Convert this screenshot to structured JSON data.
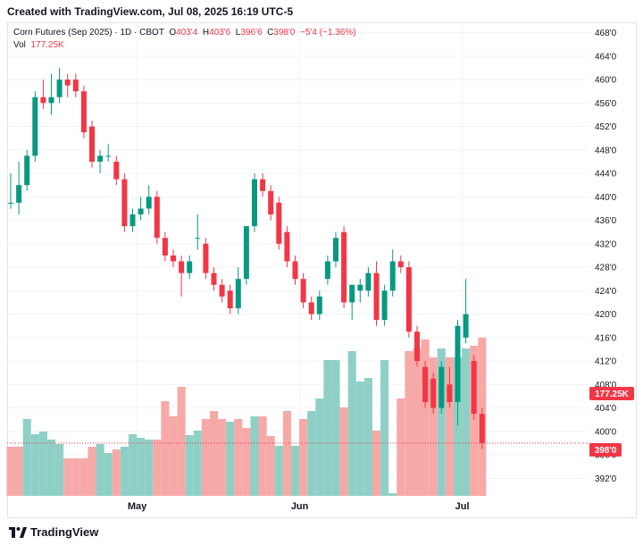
{
  "header": {
    "created": "Created with TradingView.com, Jul 08, 2025 16:19 UTC-5"
  },
  "legend": {
    "symbol": "Corn Futures (Sep 2025) · 1D · CBOT",
    "o_label": "O",
    "o_value": "403'4",
    "h_label": "H",
    "h_value": "403'6",
    "l_label": "L",
    "l_value": "396'6",
    "c_label": "C",
    "c_value": "398'0",
    "change": "−5'4 (−1.36%)",
    "vol_label": "Vol",
    "vol_value": "177.25K"
  },
  "badges": {
    "volume": "177.25K",
    "price": "398'0"
  },
  "footer": {
    "brand": "TradingView"
  },
  "colors": {
    "up": "#089981",
    "down": "#f23645",
    "vol_up": "#8fd0c6",
    "vol_down": "#f7a9a7"
  },
  "chart_data": {
    "type": "candlestick",
    "y_axis": {
      "ylim": [
        389,
        469
      ],
      "ticks": [
        392,
        396,
        400,
        404,
        408,
        412,
        416,
        420,
        424,
        428,
        432,
        436,
        440,
        444,
        448,
        452,
        456,
        460,
        464,
        468
      ],
      "tick_labels": [
        "392'0",
        "396'0",
        "400'0",
        "404'0",
        "408'0",
        "412'0",
        "416'0",
        "420'0",
        "424'0",
        "428'0",
        "432'0",
        "436'0",
        "440'0",
        "444'0",
        "448'0",
        "452'0",
        "456'0",
        "460'0",
        "464'0",
        "468'0"
      ]
    },
    "x_labels": [
      {
        "label": "May",
        "index": 16
      },
      {
        "label": "Jun",
        "index": 36
      },
      {
        "label": "Jul",
        "index": 56
      }
    ],
    "last_price": 398,
    "candles": [
      {
        "o": 439,
        "h": 444,
        "l": 438,
        "c": 439
      },
      {
        "o": 439,
        "h": 446,
        "l": 437,
        "c": 442
      },
      {
        "o": 442,
        "h": 448,
        "l": 441,
        "c": 447
      },
      {
        "o": 447,
        "h": 458,
        "l": 446,
        "c": 457
      },
      {
        "o": 457,
        "h": 460,
        "l": 455,
        "c": 456
      },
      {
        "o": 456,
        "h": 461,
        "l": 454,
        "c": 457
      },
      {
        "o": 457,
        "h": 462,
        "l": 456,
        "c": 460
      },
      {
        "o": 460,
        "h": 461,
        "l": 457,
        "c": 459
      },
      {
        "o": 460,
        "h": 461,
        "l": 457,
        "c": 458
      },
      {
        "o": 458,
        "h": 459,
        "l": 450,
        "c": 451
      },
      {
        "o": 452,
        "h": 453,
        "l": 445,
        "c": 446
      },
      {
        "o": 446,
        "h": 448,
        "l": 444,
        "c": 447
      },
      {
        "o": 447,
        "h": 449,
        "l": 446,
        "c": 447
      },
      {
        "o": 446,
        "h": 447,
        "l": 442,
        "c": 443
      },
      {
        "o": 443,
        "h": 444,
        "l": 434,
        "c": 435
      },
      {
        "o": 435,
        "h": 438,
        "l": 434,
        "c": 437
      },
      {
        "o": 437,
        "h": 440,
        "l": 436,
        "c": 438
      },
      {
        "o": 438,
        "h": 442,
        "l": 437,
        "c": 440
      },
      {
        "o": 440,
        "h": 441,
        "l": 432,
        "c": 433
      },
      {
        "o": 433,
        "h": 434,
        "l": 429,
        "c": 430
      },
      {
        "o": 430,
        "h": 431,
        "l": 428,
        "c": 429
      },
      {
        "o": 429,
        "h": 430,
        "l": 423,
        "c": 427
      },
      {
        "o": 427,
        "h": 430,
        "l": 426,
        "c": 429
      },
      {
        "o": 433,
        "h": 437,
        "l": 431,
        "c": 433
      },
      {
        "o": 432,
        "h": 433,
        "l": 426,
        "c": 427
      },
      {
        "o": 427,
        "h": 428,
        "l": 424,
        "c": 425
      },
      {
        "o": 425,
        "h": 426,
        "l": 422,
        "c": 423
      },
      {
        "o": 424,
        "h": 425,
        "l": 420,
        "c": 421
      },
      {
        "o": 421,
        "h": 428,
        "l": 420,
        "c": 426
      },
      {
        "o": 426,
        "h": 435,
        "l": 425,
        "c": 435
      },
      {
        "o": 435,
        "h": 444,
        "l": 434,
        "c": 443
      },
      {
        "o": 443,
        "h": 444,
        "l": 440,
        "c": 441
      },
      {
        "o": 441,
        "h": 442,
        "l": 436,
        "c": 437
      },
      {
        "o": 439,
        "h": 440,
        "l": 431,
        "c": 432
      },
      {
        "o": 434,
        "h": 435,
        "l": 428,
        "c": 429
      },
      {
        "o": 429,
        "h": 430,
        "l": 425,
        "c": 426
      },
      {
        "o": 426,
        "h": 427,
        "l": 421,
        "c": 422
      },
      {
        "o": 422,
        "h": 423,
        "l": 419,
        "c": 420
      },
      {
        "o": 420,
        "h": 424,
        "l": 419,
        "c": 423
      },
      {
        "o": 426,
        "h": 430,
        "l": 425,
        "c": 429
      },
      {
        "o": 429,
        "h": 434,
        "l": 428,
        "c": 433
      },
      {
        "o": 434,
        "h": 435,
        "l": 421,
        "c": 422
      },
      {
        "o": 422,
        "h": 425,
        "l": 419,
        "c": 425
      },
      {
        "o": 424,
        "h": 426,
        "l": 422,
        "c": 425
      },
      {
        "o": 424,
        "h": 428,
        "l": 423,
        "c": 427
      },
      {
        "o": 427,
        "h": 429,
        "l": 418,
        "c": 419
      },
      {
        "o": 419,
        "h": 425,
        "l": 418,
        "c": 424
      },
      {
        "o": 424,
        "h": 431,
        "l": 423,
        "c": 429
      },
      {
        "o": 429,
        "h": 430,
        "l": 427,
        "c": 428
      },
      {
        "o": 428,
        "h": 429,
        "l": 416,
        "c": 417
      },
      {
        "o": 417,
        "h": 418,
        "l": 411,
        "c": 412
      },
      {
        "o": 411,
        "h": 412,
        "l": 404,
        "c": 405
      },
      {
        "o": 409,
        "h": 410,
        "l": 403,
        "c": 404
      },
      {
        "o": 404,
        "h": 412,
        "l": 403,
        "c": 411
      },
      {
        "o": 408,
        "h": 411,
        "l": 404,
        "c": 405
      },
      {
        "o": 405,
        "h": 419,
        "l": 401,
        "c": 418
      },
      {
        "o": 416,
        "h": 426,
        "l": 415,
        "c": 420
      },
      {
        "o": 412,
        "h": 413,
        "l": 402,
        "c": 403
      },
      {
        "o": 403,
        "h": 404,
        "l": 397,
        "c": 398
      }
    ],
    "volume": [
      {
        "v": 55,
        "up": false
      },
      {
        "v": 55,
        "up": false
      },
      {
        "v": 86,
        "up": true
      },
      {
        "v": 69,
        "up": true
      },
      {
        "v": 72,
        "up": true
      },
      {
        "v": 63,
        "up": true
      },
      {
        "v": 58,
        "up": true
      },
      {
        "v": 42,
        "up": false
      },
      {
        "v": 42,
        "up": false
      },
      {
        "v": 42,
        "up": false
      },
      {
        "v": 55,
        "up": false
      },
      {
        "v": 58,
        "up": true
      },
      {
        "v": 48,
        "up": true
      },
      {
        "v": 52,
        "up": false
      },
      {
        "v": 55,
        "up": true
      },
      {
        "v": 69,
        "up": true
      },
      {
        "v": 65,
        "up": true
      },
      {
        "v": 63,
        "up": true
      },
      {
        "v": 63,
        "up": false
      },
      {
        "v": 106,
        "up": false
      },
      {
        "v": 89,
        "up": false
      },
      {
        "v": 122,
        "up": false
      },
      {
        "v": 68,
        "up": true
      },
      {
        "v": 73,
        "up": true
      },
      {
        "v": 86,
        "up": false
      },
      {
        "v": 95,
        "up": false
      },
      {
        "v": 86,
        "up": false
      },
      {
        "v": 83,
        "up": true
      },
      {
        "v": 86,
        "up": false
      },
      {
        "v": 76,
        "up": false
      },
      {
        "v": 89,
        "up": true
      },
      {
        "v": 89,
        "up": false
      },
      {
        "v": 67,
        "up": false
      },
      {
        "v": 56,
        "up": true
      },
      {
        "v": 95,
        "up": false
      },
      {
        "v": 56,
        "up": true
      },
      {
        "v": 86,
        "up": false
      },
      {
        "v": 95,
        "up": true
      },
      {
        "v": 109,
        "up": true
      },
      {
        "v": 152,
        "up": true
      },
      {
        "v": 152,
        "up": true
      },
      {
        "v": 99,
        "up": false
      },
      {
        "v": 162,
        "up": true
      },
      {
        "v": 128,
        "up": true
      },
      {
        "v": 132,
        "up": true
      },
      {
        "v": 73,
        "up": false
      },
      {
        "v": 152,
        "up": true
      },
      {
        "v": 3,
        "up": true
      },
      {
        "v": 109,
        "up": false
      },
      {
        "v": 162,
        "up": false
      },
      {
        "v": 165,
        "up": false
      },
      {
        "v": 175,
        "up": false
      },
      {
        "v": 155,
        "up": false
      },
      {
        "v": 165,
        "up": true
      },
      {
        "v": 155,
        "up": false
      },
      {
        "v": 155,
        "up": true
      },
      {
        "v": 165,
        "up": true
      },
      {
        "v": 168,
        "up": false
      },
      {
        "v": 177.25,
        "up": false
      }
    ],
    "volume_max": 240
  }
}
